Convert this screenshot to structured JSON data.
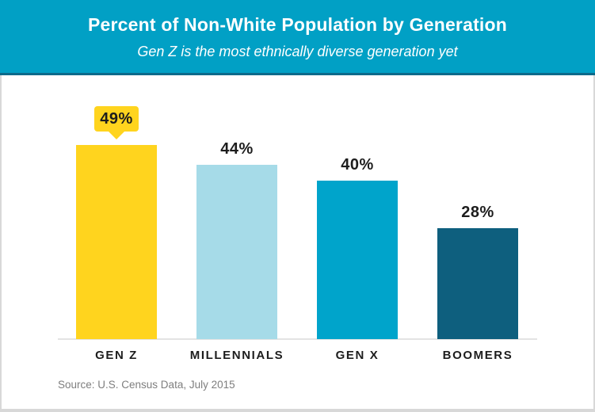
{
  "chart_data": {
    "type": "bar",
    "orientation": "vertical",
    "title": "Percent of Non-White Population by Generation",
    "subtitle": "Gen Z is the most ethnically diverse generation yet",
    "categories": [
      "GEN Z",
      "MILLENNIALS",
      "GEN X",
      "BOOMERS"
    ],
    "values": [
      49,
      44,
      40,
      28
    ],
    "value_labels": [
      "49%",
      "44%",
      "40%",
      "28%"
    ],
    "bar_colors": [
      "#FFD41E",
      "#A6DBE8",
      "#00A4CB",
      "#0E5F7E"
    ],
    "highlight": {
      "index": 0,
      "style": "callout-badge",
      "badge_color": "#FFD41E",
      "badge_text_color": "#1D1D1D"
    },
    "xlabel": "",
    "ylabel": "",
    "ylim": [
      0,
      55
    ],
    "grid": false,
    "legend": false,
    "source": "Source: U.S. Census Data, July 2015"
  },
  "colors": {
    "header_background": "#01A0C5",
    "header_accent_border": "#0D6A8A",
    "header_text": "#FFFFFF",
    "label_text": "#1D1D1D",
    "source_text": "#7E7E7E",
    "axis_line": "#E3E3E3",
    "card_background": "#FFFFFF",
    "card_border": "#D8D8D8"
  }
}
